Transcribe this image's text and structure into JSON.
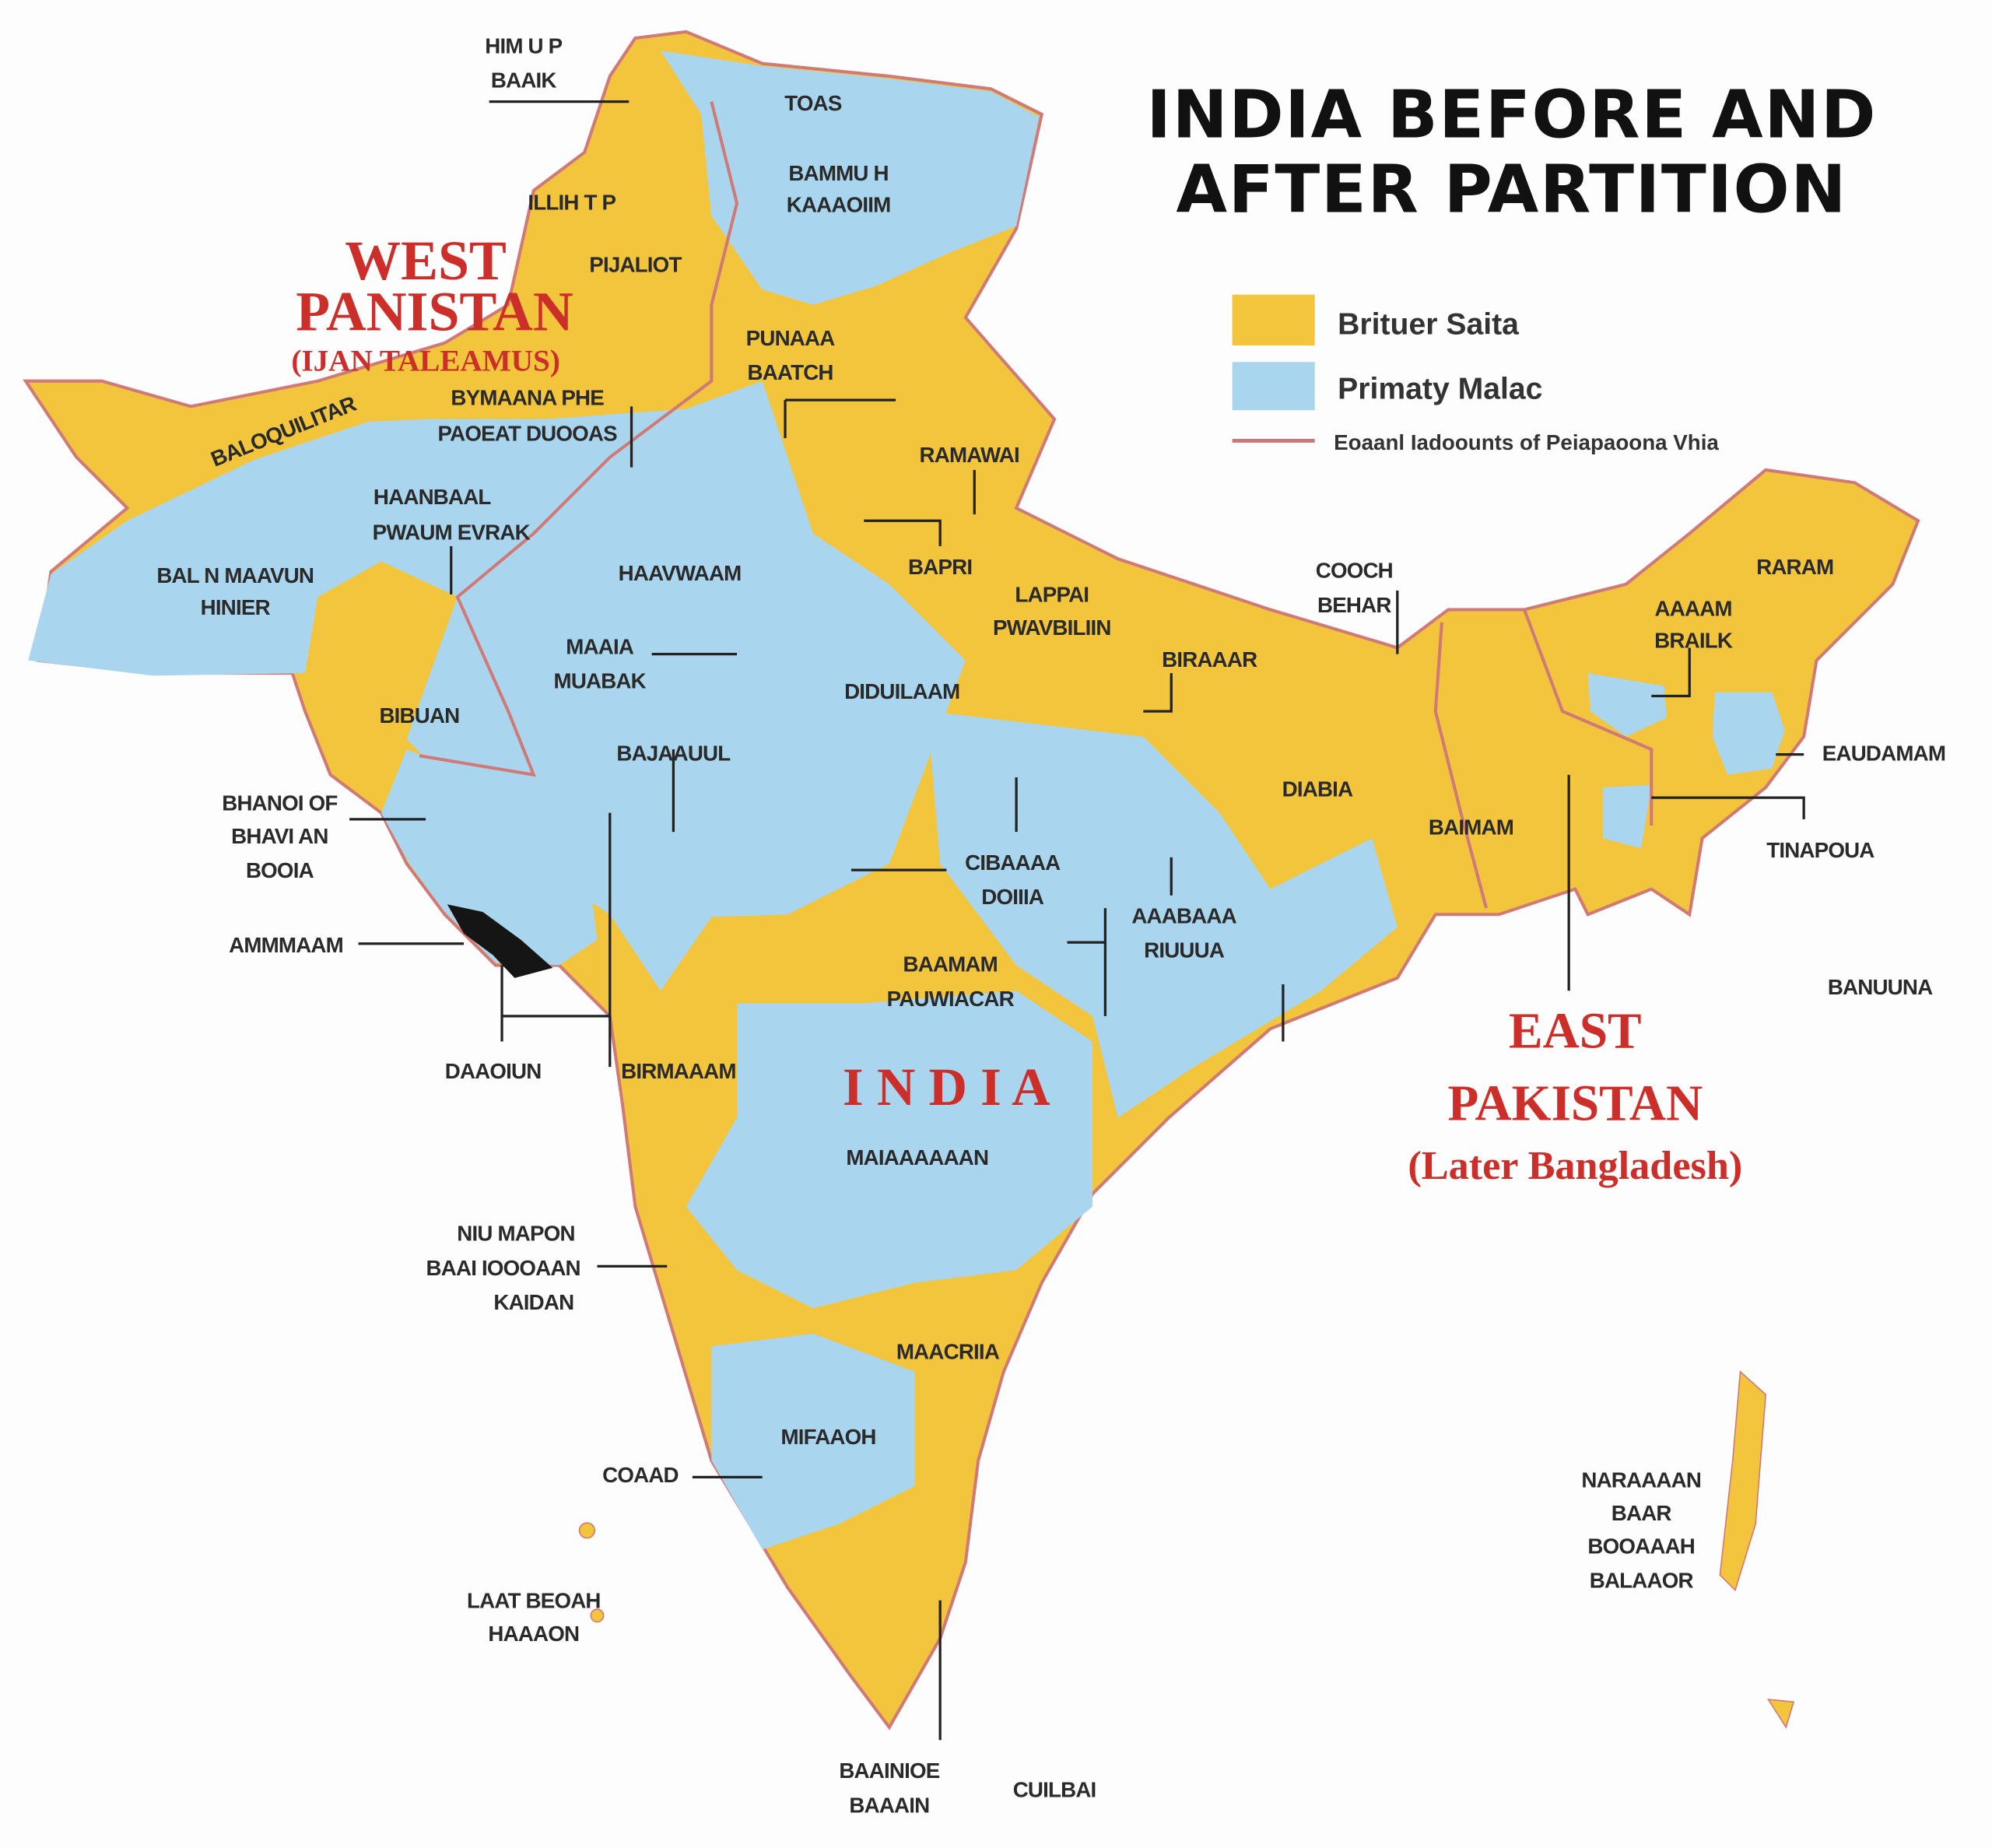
{
  "title": {
    "line1": "INDIA BEFORE AND",
    "line2": "AFTER PARTITION"
  },
  "legend": [
    {
      "label": "Brituer Saita",
      "color": "#f2c53d"
    },
    {
      "label": "Primaty Malac",
      "color": "#a9d6ee"
    },
    {
      "label": "Eoaanl Iadoounts of Peiapaoona Vhia",
      "color": "#c9777a"
    }
  ],
  "colors": {
    "yellow": "#f2c53d",
    "blue": "#a9d6ee",
    "border": "#d07a78",
    "red_text": "#cc2e2a",
    "dark_region": "#151515"
  },
  "red_labels": {
    "west": [
      "WEST",
      "PANISTAN",
      "(IJAN TALEAMUS)"
    ],
    "india": "I N D I A",
    "east": [
      "EAST",
      "PAKISTAN",
      "(Later Bangladesh)"
    ]
  },
  "labels": {
    "himap": [
      "HIM U P",
      "BAAIK"
    ],
    "toas": "TOAS",
    "bammu": [
      "BAMMU H",
      "KAAAOIIM"
    ],
    "illih": "ILLIH T P",
    "pijaliot": "PIJALIOT",
    "baloq": "BALOQUILITAR",
    "punaaa": [
      "PUNAAA",
      "BAATCH"
    ],
    "bymaana": [
      "BYMAANA PHE",
      "PAOEAT DUOOAS"
    ],
    "ramawai": "RAMAWAI",
    "haanbaal": [
      "HAANBAAL",
      "PWAUM EVRAK"
    ],
    "balnmaavun": [
      "BAL N MAAVUN",
      "HINIER"
    ],
    "haavwaam": "HAAVWAAM",
    "bapri": "BAPRI",
    "lappai": [
      "LAPPAI",
      "PWAVBILIIN"
    ],
    "cooch": [
      "COOCH",
      "BEHAR"
    ],
    "raram": "RARAM",
    "aaaam": [
      "AAAAM",
      "BRAILK"
    ],
    "maaia": [
      "MAAIA",
      "MUABAK"
    ],
    "diduilaam": "DIDUILAAM",
    "biraaar": "BIRAAAR",
    "bibuan": "BIBUAN",
    "bajaauul": "BAJAAUUL",
    "diabia": "DIABIA",
    "baimam": "BAIMAM",
    "eaudamam": "EAUDAMAM",
    "tinapoua": "TINAPOUA",
    "bhanoi": [
      "BHANOI OF",
      "BHAVI AN",
      "BOOIA"
    ],
    "cibaaaa": [
      "CIBAAAA",
      "DOIIIA"
    ],
    "aaabaaa": [
      "AAABAAA",
      "RIUUUA"
    ],
    "ammmaam": "AMMMAAM",
    "baamam": [
      "BAAMAM",
      "PAUWIACAR"
    ],
    "banuuna": "BANUUNA",
    "daaoiun": "DAAOIUN",
    "birmaaam": "BIRMAAAM",
    "maiaaaaaan": "MAIAAAAAAN",
    "niumapon": [
      "NIU MAPON",
      "BAAI IOOOAAN",
      "KAIDAN"
    ],
    "maacriia": "MAACRIIA",
    "mifaaoh": "MIFAAOH",
    "coaad": "COAAD",
    "naraaaan": [
      "NARAAAAN",
      "BAAR",
      "BOOAAAH",
      "BALAAOR"
    ],
    "laatbeoah": [
      "LAAT BEOAH",
      "HAAAON"
    ],
    "baainioe": [
      "BAAINIOE",
      "BAAAIN"
    ],
    "cuilbai": "CUILBAI"
  }
}
